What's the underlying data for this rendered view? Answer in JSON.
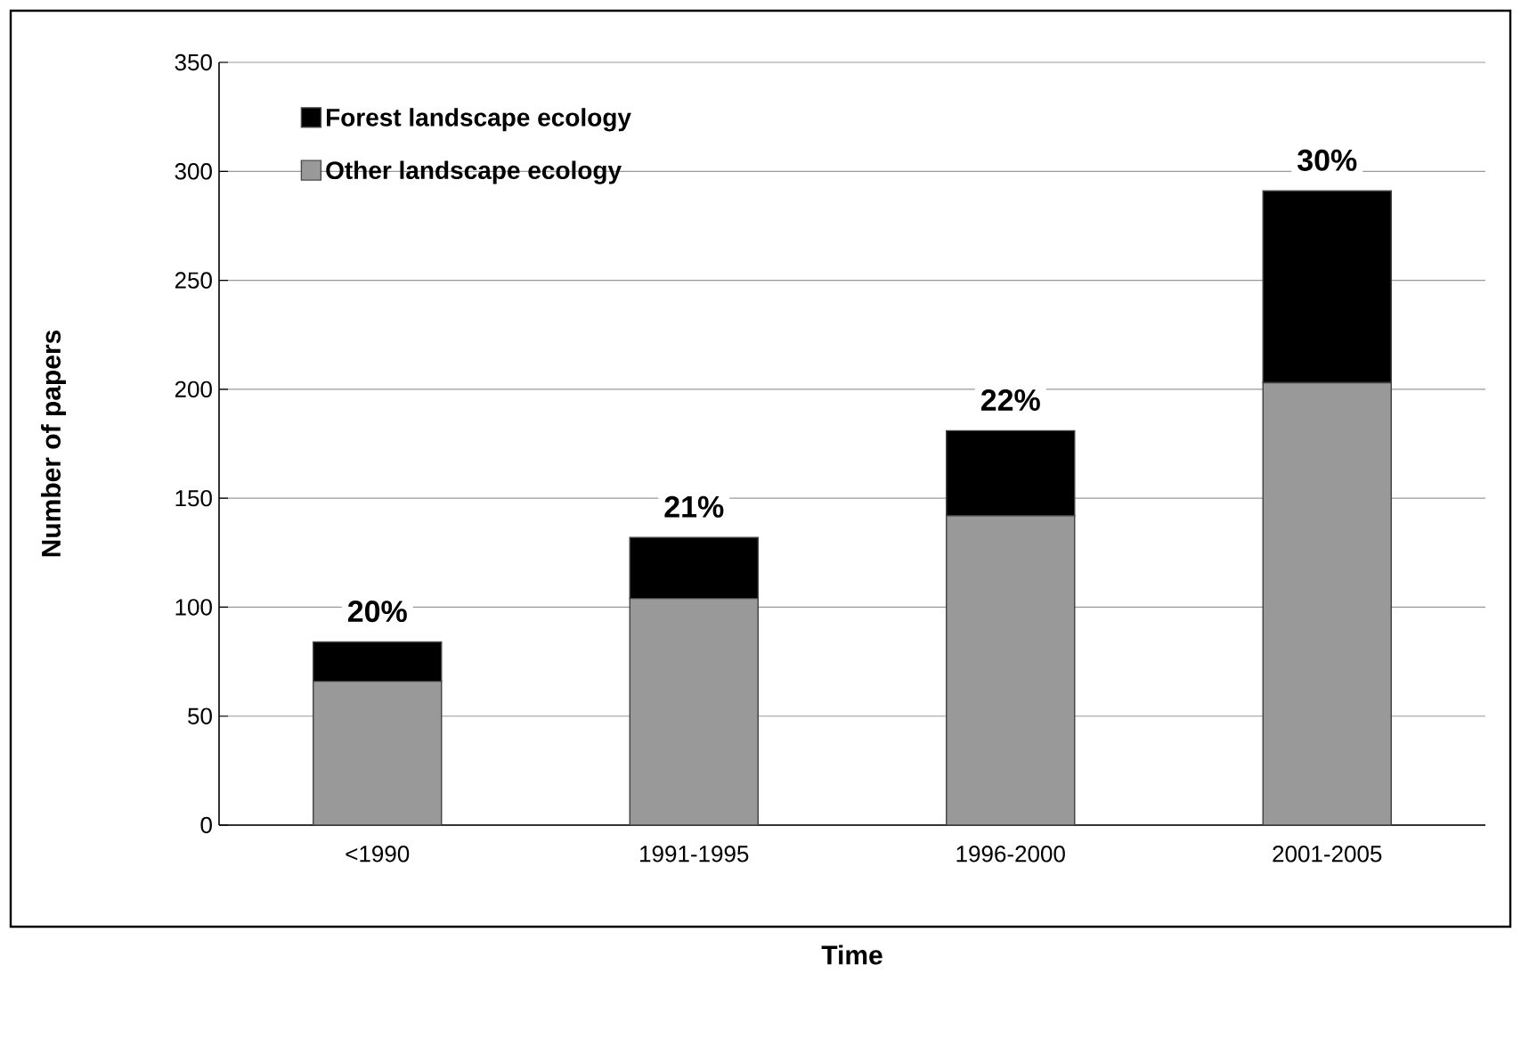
{
  "chart_data": {
    "type": "bar",
    "stacked": true,
    "xlabel": "Time",
    "ylabel": "Number of papers",
    "categories": [
      "<1990",
      "1991-1995",
      "1996-2000",
      "2001-2005"
    ],
    "series": [
      {
        "name": "Other landscape ecology",
        "color": "#999999",
        "values": [
          66,
          104,
          142,
          203
        ]
      },
      {
        "name": "Forest landscape ecology",
        "color": "#000000",
        "values": [
          18,
          28,
          39,
          88
        ]
      }
    ],
    "ylim": [
      0,
      350
    ],
    "yticks": [
      0,
      50,
      100,
      150,
      200,
      250,
      300,
      350
    ],
    "grid": "y",
    "legend": "top left",
    "annotations": [
      {
        "text": "20%",
        "x": "<1990",
        "y": 84
      },
      {
        "text": "21%",
        "x": "1991-1995",
        "y": 132
      },
      {
        "text": "22%",
        "x": "1996-2000",
        "y": 181
      },
      {
        "text": "30%",
        "x": "2001-2005",
        "y": 291
      }
    ]
  }
}
